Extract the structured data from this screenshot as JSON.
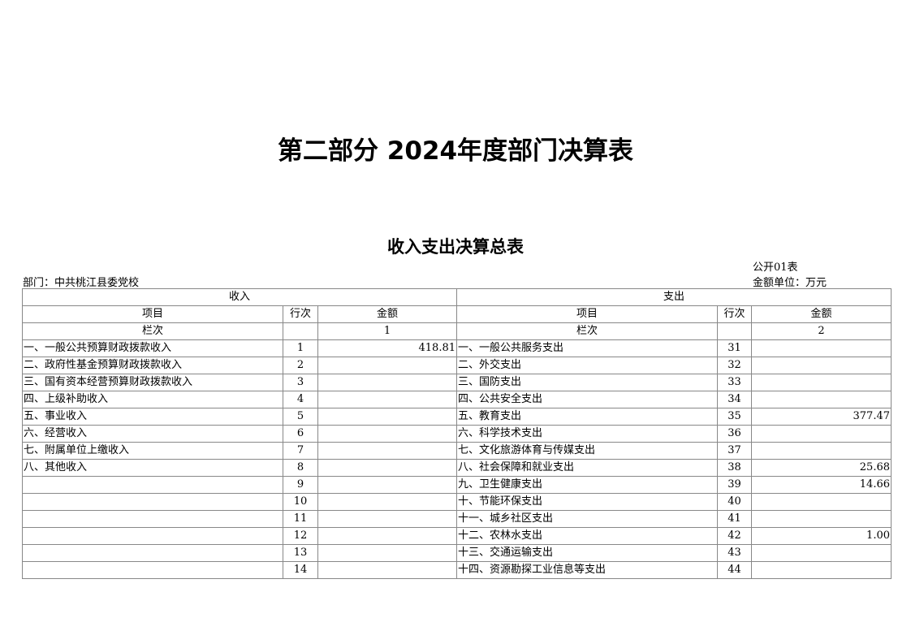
{
  "title": "第二部分 2024年度部门决算表",
  "subtitle": "收入支出决算总表",
  "form_no": "公开01表",
  "department": "部门：中共桃江县委党校",
  "unit": "金额单位：万元",
  "headers": {
    "income": "收入",
    "expense": "支出",
    "item": "项目",
    "line": "行次",
    "amount": "金额",
    "column": "栏次",
    "income_col": "1",
    "expense_col": "2"
  },
  "rows": [
    {
      "in_item": "一、一般公共预算财政拨款收入",
      "in_line": "1",
      "in_amt": "418.81",
      "ex_item": "一、一般公共服务支出",
      "ex_line": "31",
      "ex_amt": ""
    },
    {
      "in_item": "二、政府性基金预算财政拨款收入",
      "in_line": "2",
      "in_amt": "",
      "ex_item": "二、外交支出",
      "ex_line": "32",
      "ex_amt": ""
    },
    {
      "in_item": "三、国有资本经营预算财政拨款收入",
      "in_line": "3",
      "in_amt": "",
      "ex_item": "三、国防支出",
      "ex_line": "33",
      "ex_amt": ""
    },
    {
      "in_item": "四、上级补助收入",
      "in_line": "4",
      "in_amt": "",
      "ex_item": "四、公共安全支出",
      "ex_line": "34",
      "ex_amt": ""
    },
    {
      "in_item": "五、事业收入",
      "in_line": "5",
      "in_amt": "",
      "ex_item": "五、教育支出",
      "ex_line": "35",
      "ex_amt": "377.47"
    },
    {
      "in_item": "六、经营收入",
      "in_line": "6",
      "in_amt": "",
      "ex_item": "六、科学技术支出",
      "ex_line": "36",
      "ex_amt": ""
    },
    {
      "in_item": "七、附属单位上缴收入",
      "in_line": "7",
      "in_amt": "",
      "ex_item": "七、文化旅游体育与传媒支出",
      "ex_line": "37",
      "ex_amt": ""
    },
    {
      "in_item": "八、其他收入",
      "in_line": "8",
      "in_amt": "",
      "ex_item": "八、社会保障和就业支出",
      "ex_line": "38",
      "ex_amt": "25.68"
    },
    {
      "in_item": "",
      "in_line": "9",
      "in_amt": "",
      "ex_item": "九、卫生健康支出",
      "ex_line": "39",
      "ex_amt": "14.66"
    },
    {
      "in_item": "",
      "in_line": "10",
      "in_amt": "",
      "ex_item": "十、节能环保支出",
      "ex_line": "40",
      "ex_amt": ""
    },
    {
      "in_item": "",
      "in_line": "11",
      "in_amt": "",
      "ex_item": "十一、城乡社区支出",
      "ex_line": "41",
      "ex_amt": ""
    },
    {
      "in_item": "",
      "in_line": "12",
      "in_amt": "",
      "ex_item": "十二、农林水支出",
      "ex_line": "42",
      "ex_amt": "1.00"
    },
    {
      "in_item": "",
      "in_line": "13",
      "in_amt": "",
      "ex_item": "十三、交通运输支出",
      "ex_line": "43",
      "ex_amt": ""
    },
    {
      "in_item": "",
      "in_line": "14",
      "in_amt": "",
      "ex_item": "十四、资源勘探工业信息等支出",
      "ex_line": "44",
      "ex_amt": ""
    }
  ]
}
